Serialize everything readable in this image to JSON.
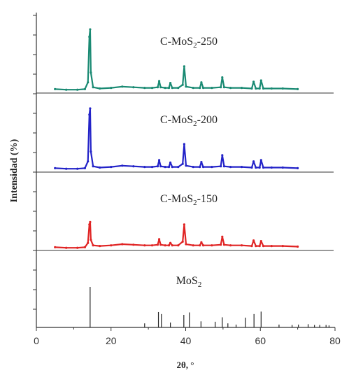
{
  "chart_data": {
    "type": "line",
    "xlabel": "2θ, °",
    "ylabel": "Intensidad (%)",
    "xlim": [
      0,
      80
    ],
    "x_ticks": [
      "0",
      "20",
      "40",
      "60",
      "80"
    ],
    "grid": false,
    "series": [
      {
        "name_main": "C-MoS",
        "name_sub": "2",
        "name_tail": "-250",
        "color": "#1a8a73",
        "x": [
          5,
          8,
          11,
          13,
          13.8,
          14.2,
          14.4,
          14.6,
          15.2,
          17,
          20,
          23,
          26,
          29,
          31,
          32.5,
          32.9,
          33.3,
          34.5,
          35.5,
          35.9,
          36.4,
          38,
          39.2,
          39.6,
          40.1,
          42,
          43.8,
          44.2,
          44.7,
          47,
          49.4,
          49.8,
          50.3,
          52,
          55,
          57.7,
          58.2,
          58.8,
          59.8,
          60.2,
          60.8,
          63,
          66,
          70
        ],
        "y": [
          3,
          2,
          2,
          3,
          14,
          88,
          100,
          30,
          6,
          4,
          5,
          7,
          6,
          5,
          5,
          6,
          16,
          6,
          5,
          5,
          13,
          5,
          5,
          10,
          40,
          7,
          5,
          5,
          14,
          5,
          5,
          6,
          22,
          6,
          5,
          5,
          4,
          15,
          4,
          4,
          17,
          4,
          4,
          4,
          3
        ]
      },
      {
        "name_main": "C-MoS",
        "name_sub": "2",
        "name_tail": "-200",
        "color": "#2323c8",
        "x": [
          5,
          8,
          11,
          13,
          13.8,
          14.2,
          14.4,
          14.6,
          15.2,
          17,
          20,
          23,
          26,
          29,
          31,
          32.5,
          32.9,
          33.3,
          34.5,
          35.5,
          35.9,
          36.4,
          38,
          39.2,
          39.6,
          40.1,
          42,
          43.8,
          44.2,
          44.7,
          47,
          49.4,
          49.8,
          50.3,
          52,
          55,
          57.7,
          58.2,
          58.8,
          59.8,
          60.2,
          60.8,
          63,
          66,
          70
        ],
        "y": [
          3,
          2,
          2,
          3,
          14,
          90,
          100,
          30,
          6,
          4,
          5,
          7,
          6,
          5,
          5,
          6,
          16,
          6,
          5,
          5,
          12,
          5,
          5,
          10,
          42,
          7,
          5,
          5,
          13,
          5,
          5,
          6,
          24,
          6,
          5,
          5,
          4,
          14,
          4,
          4,
          16,
          4,
          4,
          4,
          3
        ]
      },
      {
        "name_main": "C-MoS",
        "name_sub": "2",
        "name_tail": "-150",
        "color": "#e02424",
        "x": [
          5,
          8,
          11,
          13,
          13.8,
          14.2,
          14.4,
          14.6,
          15.2,
          17,
          20,
          23,
          26,
          29,
          31,
          32.5,
          32.9,
          33.3,
          34.5,
          35.5,
          35.9,
          36.4,
          38,
          39.2,
          39.6,
          40.1,
          42,
          43.8,
          44.2,
          44.7,
          47,
          49.4,
          49.8,
          50.3,
          52,
          55,
          57.7,
          58.2,
          58.8,
          59.8,
          60.2,
          60.8,
          63,
          66,
          70
        ],
        "y": [
          3,
          2,
          2,
          3,
          10,
          40,
          44,
          15,
          6,
          5,
          6,
          8,
          7,
          6,
          6,
          7,
          16,
          7,
          6,
          6,
          10,
          6,
          6,
          12,
          40,
          8,
          6,
          6,
          11,
          6,
          6,
          7,
          20,
          7,
          6,
          6,
          5,
          14,
          5,
          5,
          13,
          5,
          5,
          5,
          4
        ]
      }
    ],
    "reference": {
      "name_main": "MoS",
      "name_sub": "2",
      "color": "#222222",
      "peaks": [
        {
          "x": 14.4,
          "y": 100
        },
        {
          "x": 29.0,
          "y": 10
        },
        {
          "x": 32.7,
          "y": 38
        },
        {
          "x": 33.5,
          "y": 33
        },
        {
          "x": 35.9,
          "y": 12
        },
        {
          "x": 39.5,
          "y": 31
        },
        {
          "x": 41.0,
          "y": 37
        },
        {
          "x": 44.1,
          "y": 15
        },
        {
          "x": 47.9,
          "y": 14
        },
        {
          "x": 49.8,
          "y": 25
        },
        {
          "x": 51.3,
          "y": 10
        },
        {
          "x": 53.5,
          "y": 7
        },
        {
          "x": 56.0,
          "y": 24
        },
        {
          "x": 58.3,
          "y": 33
        },
        {
          "x": 60.2,
          "y": 39
        },
        {
          "x": 65.0,
          "y": 7
        },
        {
          "x": 68.5,
          "y": 6
        },
        {
          "x": 70.2,
          "y": 7
        },
        {
          "x": 72.8,
          "y": 8
        },
        {
          "x": 74.5,
          "y": 6
        },
        {
          "x": 75.9,
          "y": 6
        },
        {
          "x": 77.6,
          "y": 6
        },
        {
          "x": 78.4,
          "y": 5
        }
      ]
    }
  }
}
